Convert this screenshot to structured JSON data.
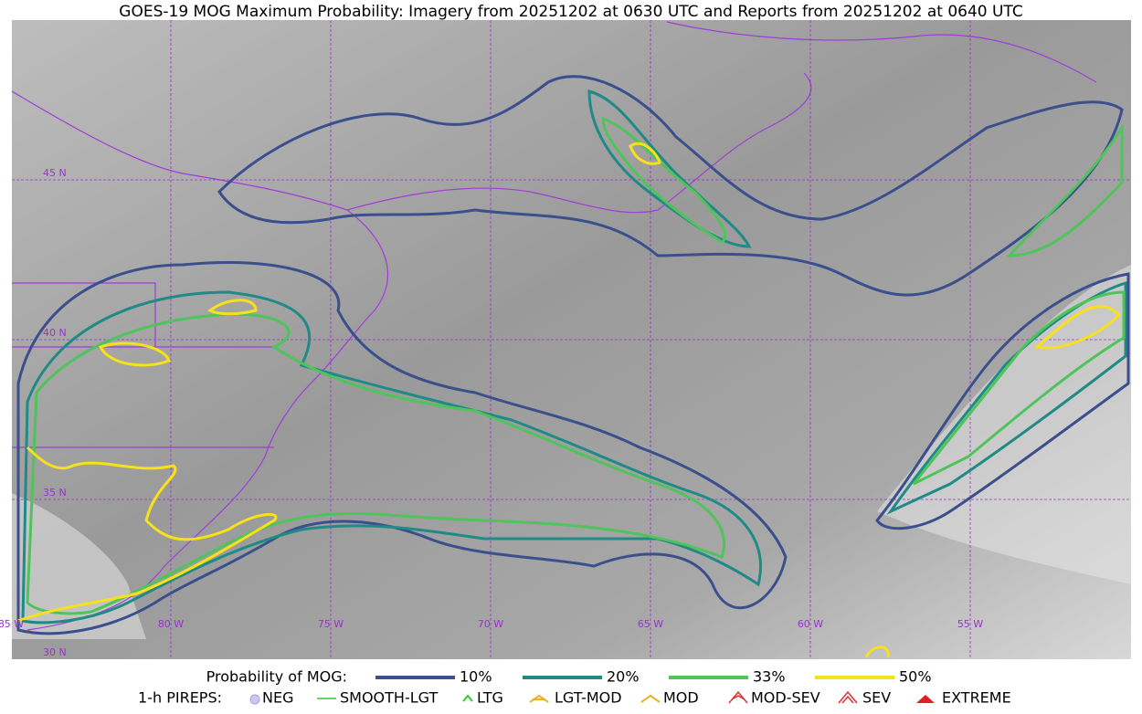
{
  "title": "GOES-19 MOG Maximum Probability: Imagery from 20251202 at 0630 UTC and Reports from 20251202 at 0640 UTC",
  "map": {
    "lat_labels": [
      "45 N",
      "40 N",
      "35 N",
      "30 N"
    ],
    "lon_labels": [
      "85 W",
      "80 W",
      "75 W",
      "70 W",
      "65 W",
      "60 W",
      "55 W"
    ]
  },
  "legend": {
    "probability": {
      "label": "Probability of MOG:",
      "items": [
        "10%",
        "20%",
        "33%",
        "50%"
      ]
    },
    "pireps": {
      "label": "1-h PIREPS:",
      "items": [
        "NEG",
        "SMOOTH-LGT",
        "LTG",
        "LGT-MOD",
        "MOD",
        "MOD-SEV",
        "SEV",
        "EXTREME"
      ]
    }
  }
}
